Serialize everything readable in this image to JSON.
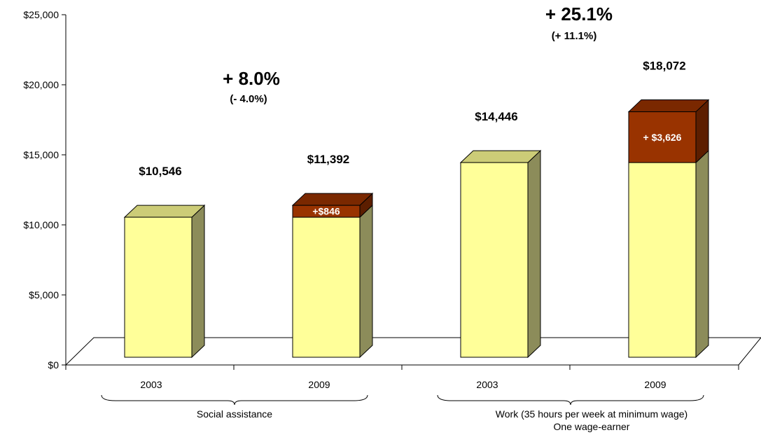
{
  "chart_data": {
    "type": "bar",
    "stacked": true,
    "three_d": true,
    "y_ticks": [
      "$0",
      "$5,000",
      "$10,000",
      "$15,000",
      "$20,000",
      "$25,000"
    ],
    "ylim": [
      0,
      25000
    ],
    "grid": false,
    "categories": [
      "2003",
      "2009",
      "2003",
      "2009"
    ],
    "groups": [
      {
        "label": "Social assistance",
        "bars": [
          0,
          1
        ]
      },
      {
        "label_lines": [
          "Work (35 hours per week at minimum wage)",
          "One wage-earner"
        ],
        "bars": [
          2,
          3
        ]
      }
    ],
    "series": [
      {
        "role": "base",
        "values": [
          10546,
          10546,
          14446,
          14446
        ]
      },
      {
        "role": "increase",
        "values": [
          0,
          846,
          0,
          3626
        ]
      }
    ],
    "total_labels": [
      "$10,546",
      "$11,392",
      "$14,446",
      "$18,072"
    ],
    "increase_labels": [
      "",
      "+$846",
      "",
      "+ $3,626"
    ],
    "change_annotations": [
      {
        "main": "+ 8.0%",
        "sub": "(- 4.0%)",
        "group": 0
      },
      {
        "main": "+ 25.1%",
        "sub": "(+ 11.1%)",
        "group": 1
      }
    ],
    "colors": {
      "base_front": "#FFFF99",
      "base_top": "#CCCC77",
      "base_side": "#8C8C5A",
      "inc_front": "#993300",
      "inc_top": "#7A2800",
      "inc_side": "#5C1E00",
      "floor": "#ffffff",
      "axis": "#000000"
    }
  }
}
